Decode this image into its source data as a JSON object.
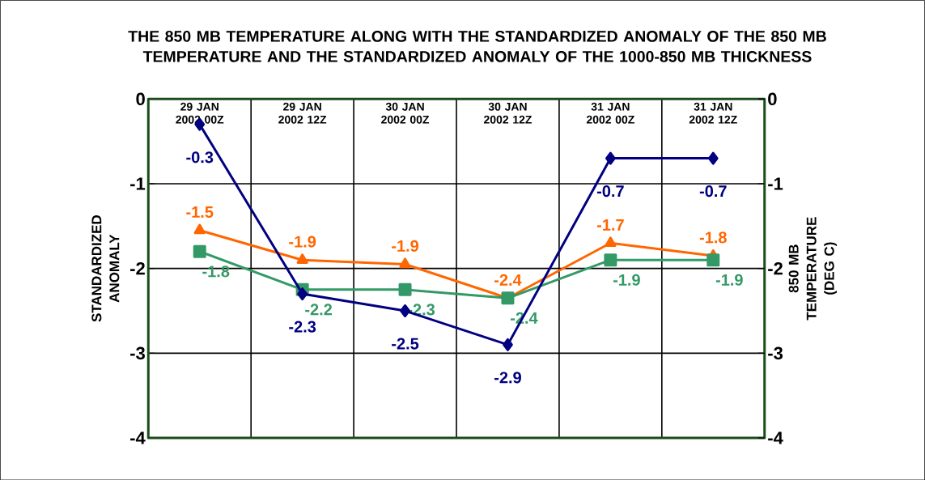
{
  "chart_data": {
    "type": "line",
    "title": "THE 850 MB TEMPERATURE ALONG WITH THE STANDARDIZED ANOMALY OF THE 850 MB TEMPERATURE AND THE STANDARDIZED ANOMALY OF THE 1000-850 MB THICKNESS",
    "ylabel": "STANDARDIZED ANOMALY",
    "y2label": "850 MB TEMPERATURE (DEG C)",
    "categories": [
      "29 JAN 2002 00Z",
      "29 JAN 2002 12Z",
      "30 JAN 2002 00Z",
      "30 JAN 2002 12Z",
      "31 JAN 2002 00Z",
      "31 JAN 2002 12Z"
    ],
    "series": [
      {
        "color": "#000080",
        "axis": "y2",
        "marker": "diamond",
        "values": [
          -0.3,
          -2.3,
          -2.5,
          -2.9,
          -0.7,
          -0.7
        ],
        "value_labels": [
          "-0.3",
          "-2.3",
          "-2.5",
          "-2.9",
          "-0.7",
          "-0.7"
        ]
      },
      {
        "color": "#ff6600",
        "marker": "triangle",
        "values": [
          -1.55,
          -1.9,
          -1.95,
          -2.35,
          -1.7,
          -1.85
        ],
        "value_labels": [
          "-1.5",
          "-1.9",
          "-1.9",
          "-2.4",
          "-1.7",
          "-1.8"
        ]
      },
      {
        "color": "#339966",
        "marker": "square",
        "values": [
          -1.8,
          -2.25,
          -2.25,
          -2.35,
          -1.9,
          -1.9
        ],
        "value_labels": [
          "-1.8",
          "-2.2",
          "-2.3",
          "-2.4",
          "-1.9",
          "-1.9"
        ]
      }
    ],
    "ylim": [
      -4,
      0
    ],
    "yticks": [
      -4,
      -3,
      -2,
      -1,
      0
    ],
    "y2lim": [
      -4,
      0
    ],
    "y2ticks": [
      -4,
      -3,
      -2,
      -1,
      0
    ],
    "grid": true
  }
}
